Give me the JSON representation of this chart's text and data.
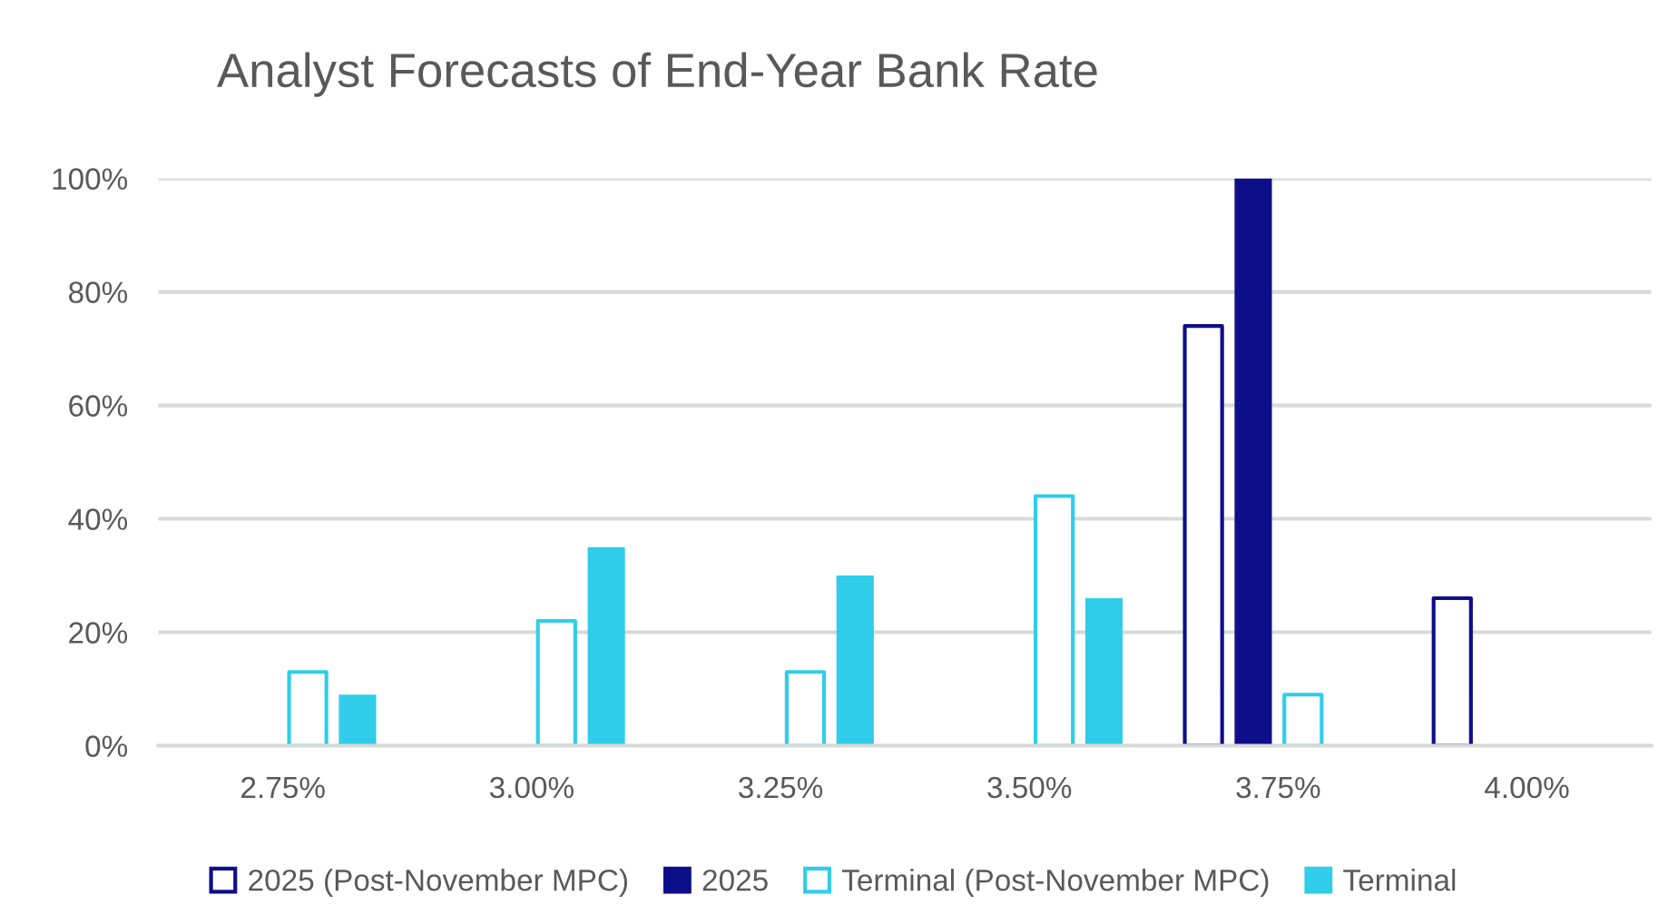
{
  "chart_data": {
    "type": "bar",
    "title": "Analyst Forecasts of End-Year Bank Rate",
    "categories": [
      "2.75%",
      "3.00%",
      "3.25%",
      "3.50%",
      "3.75%",
      "4.00%"
    ],
    "series": [
      {
        "name": "2025 (Post-November MPC)",
        "color": "#0d0f8a",
        "line_style": "solid",
        "values": [
          null,
          null,
          null,
          null,
          74,
          26
        ]
      },
      {
        "name": "2025",
        "color": "#0d0f8a",
        "values": [
          null,
          null,
          null,
          null,
          100,
          null
        ]
      },
      {
        "name": "Terminal (Post-November MPC)",
        "color": "#30cdea",
        "line_style": "solid",
        "values": [
          13,
          22,
          13,
          44,
          9,
          null
        ]
      },
      {
        "name": "Terminal",
        "color": "#30cdea",
        "values": [
          9,
          35,
          30,
          26,
          null,
          null
        ]
      }
    ],
    "ylim": [
      0,
      100
    ],
    "yticks": [
      {
        "value": 0,
        "label": "0%"
      },
      {
        "value": 20,
        "label": "20%"
      },
      {
        "value": 40,
        "label": "40%"
      },
      {
        "value": 60,
        "label": "60%"
      },
      {
        "value": 80,
        "label": "80%"
      },
      {
        "value": 100,
        "label": "100%"
      }
    ],
    "grid": "y",
    "legend": "bottom"
  }
}
